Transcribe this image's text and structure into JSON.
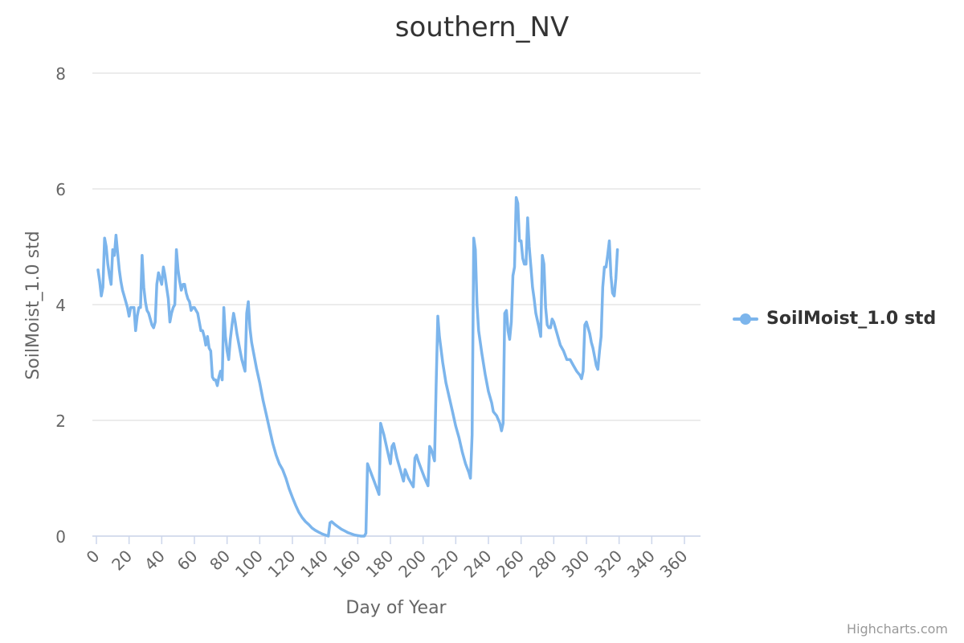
{
  "chart_data": {
    "type": "line",
    "title": "southern_NV",
    "xlabel": "Day of Year",
    "ylabel": "SoilMoist_1.0 std",
    "xlim": [
      0,
      366
    ],
    "ylim": [
      0,
      8
    ],
    "xticks": [
      0,
      20,
      40,
      60,
      80,
      100,
      120,
      140,
      160,
      180,
      200,
      220,
      240,
      260,
      280,
      300,
      320,
      340,
      360
    ],
    "yticks": [
      0,
      2,
      4,
      6,
      8
    ],
    "grid": true,
    "legend_position": "right",
    "series": [
      {
        "name": "SoilMoist_1.0 std",
        "color": "#7cb5ec",
        "points": [
          [
            1,
            4.6
          ],
          [
            2,
            4.4
          ],
          [
            3,
            4.15
          ],
          [
            4,
            4.3
          ],
          [
            5,
            5.15
          ],
          [
            6,
            5.0
          ],
          [
            7,
            4.7
          ],
          [
            8,
            4.5
          ],
          [
            9,
            4.35
          ],
          [
            10,
            4.95
          ],
          [
            11,
            4.85
          ],
          [
            12,
            5.2
          ],
          [
            13,
            4.9
          ],
          [
            14,
            4.6
          ],
          [
            15,
            4.4
          ],
          [
            16,
            4.25
          ],
          [
            17,
            4.15
          ],
          [
            18,
            4.05
          ],
          [
            19,
            3.95
          ],
          [
            20,
            3.8
          ],
          [
            21,
            3.95
          ],
          [
            22,
            3.95
          ],
          [
            23,
            3.95
          ],
          [
            24,
            3.55
          ],
          [
            25,
            3.8
          ],
          [
            26,
            3.95
          ],
          [
            27,
            3.95
          ],
          [
            28,
            4.85
          ],
          [
            29,
            4.3
          ],
          [
            30,
            4.05
          ],
          [
            31,
            3.9
          ],
          [
            32,
            3.85
          ],
          [
            33,
            3.75
          ],
          [
            34,
            3.65
          ],
          [
            35,
            3.6
          ],
          [
            36,
            3.7
          ],
          [
            37,
            4.35
          ],
          [
            38,
            4.55
          ],
          [
            39,
            4.45
          ],
          [
            40,
            4.35
          ],
          [
            41,
            4.65
          ],
          [
            42,
            4.5
          ],
          [
            43,
            4.3
          ],
          [
            44,
            4.1
          ],
          [
            45,
            3.7
          ],
          [
            46,
            3.85
          ],
          [
            47,
            3.95
          ],
          [
            48,
            4.0
          ],
          [
            49,
            4.95
          ],
          [
            50,
            4.6
          ],
          [
            51,
            4.4
          ],
          [
            52,
            4.25
          ],
          [
            53,
            4.35
          ],
          [
            54,
            4.35
          ],
          [
            55,
            4.2
          ],
          [
            56,
            4.1
          ],
          [
            57,
            4.05
          ],
          [
            58,
            3.9
          ],
          [
            59,
            3.95
          ],
          [
            60,
            3.95
          ],
          [
            61,
            3.9
          ],
          [
            62,
            3.85
          ],
          [
            63,
            3.7
          ],
          [
            64,
            3.55
          ],
          [
            65,
            3.55
          ],
          [
            66,
            3.45
          ],
          [
            67,
            3.3
          ],
          [
            68,
            3.45
          ],
          [
            69,
            3.25
          ],
          [
            70,
            3.2
          ],
          [
            71,
            2.75
          ],
          [
            72,
            2.7
          ],
          [
            73,
            2.7
          ],
          [
            74,
            2.6
          ],
          [
            75,
            2.75
          ],
          [
            76,
            2.85
          ],
          [
            77,
            2.7
          ],
          [
            78,
            3.95
          ],
          [
            79,
            3.45
          ],
          [
            80,
            3.2
          ],
          [
            81,
            3.05
          ],
          [
            82,
            3.4
          ],
          [
            83,
            3.65
          ],
          [
            84,
            3.85
          ],
          [
            85,
            3.7
          ],
          [
            86,
            3.5
          ],
          [
            87,
            3.35
          ],
          [
            88,
            3.2
          ],
          [
            89,
            3.05
          ],
          [
            90,
            2.95
          ],
          [
            91,
            2.85
          ],
          [
            92,
            3.85
          ],
          [
            93,
            4.05
          ],
          [
            94,
            3.6
          ],
          [
            95,
            3.35
          ],
          [
            96,
            3.2
          ],
          [
            98,
            2.9
          ],
          [
            100,
            2.65
          ],
          [
            102,
            2.35
          ],
          [
            104,
            2.1
          ],
          [
            106,
            1.85
          ],
          [
            108,
            1.6
          ],
          [
            110,
            1.4
          ],
          [
            112,
            1.25
          ],
          [
            114,
            1.15
          ],
          [
            116,
            1.0
          ],
          [
            118,
            0.82
          ],
          [
            120,
            0.67
          ],
          [
            122,
            0.53
          ],
          [
            124,
            0.41
          ],
          [
            126,
            0.32
          ],
          [
            128,
            0.25
          ],
          [
            130,
            0.2
          ],
          [
            132,
            0.14
          ],
          [
            134,
            0.1
          ],
          [
            136,
            0.07
          ],
          [
            138,
            0.04
          ],
          [
            140,
            0.02
          ],
          [
            142,
            0.0
          ],
          [
            143,
            0.23
          ],
          [
            144,
            0.25
          ],
          [
            146,
            0.2
          ],
          [
            148,
            0.16
          ],
          [
            150,
            0.12
          ],
          [
            152,
            0.09
          ],
          [
            154,
            0.06
          ],
          [
            156,
            0.04
          ],
          [
            158,
            0.02
          ],
          [
            160,
            0.01
          ],
          [
            162,
            0.0
          ],
          [
            164,
            0.0
          ],
          [
            165,
            0.05
          ],
          [
            166,
            1.25
          ],
          [
            168,
            1.1
          ],
          [
            170,
            0.95
          ],
          [
            172,
            0.8
          ],
          [
            173,
            0.72
          ],
          [
            174,
            1.95
          ],
          [
            176,
            1.75
          ],
          [
            178,
            1.5
          ],
          [
            180,
            1.25
          ],
          [
            181,
            1.55
          ],
          [
            182,
            1.6
          ],
          [
            184,
            1.35
          ],
          [
            186,
            1.15
          ],
          [
            187,
            1.05
          ],
          [
            188,
            0.95
          ],
          [
            189,
            1.15
          ],
          [
            191,
            1.0
          ],
          [
            193,
            0.9
          ],
          [
            194,
            0.85
          ],
          [
            195,
            1.35
          ],
          [
            196,
            1.4
          ],
          [
            197,
            1.3
          ],
          [
            199,
            1.15
          ],
          [
            201,
            1.0
          ],
          [
            203,
            0.87
          ],
          [
            204,
            1.55
          ],
          [
            205,
            1.5
          ],
          [
            206,
            1.4
          ],
          [
            207,
            1.3
          ],
          [
            208,
            2.6
          ],
          [
            209,
            3.8
          ],
          [
            210,
            3.45
          ],
          [
            212,
            3.0
          ],
          [
            214,
            2.65
          ],
          [
            216,
            2.4
          ],
          [
            218,
            2.15
          ],
          [
            220,
            1.9
          ],
          [
            222,
            1.7
          ],
          [
            224,
            1.45
          ],
          [
            226,
            1.25
          ],
          [
            228,
            1.1
          ],
          [
            229,
            1.0
          ],
          [
            230,
            1.75
          ],
          [
            231,
            5.15
          ],
          [
            232,
            4.95
          ],
          [
            233,
            4.0
          ],
          [
            234,
            3.55
          ],
          [
            236,
            3.15
          ],
          [
            238,
            2.8
          ],
          [
            240,
            2.5
          ],
          [
            242,
            2.3
          ],
          [
            243,
            2.15
          ],
          [
            245,
            2.08
          ],
          [
            247,
            1.95
          ],
          [
            248,
            1.82
          ],
          [
            249,
            1.95
          ],
          [
            250,
            3.85
          ],
          [
            251,
            3.9
          ],
          [
            252,
            3.55
          ],
          [
            253,
            3.4
          ],
          [
            254,
            3.7
          ],
          [
            255,
            4.5
          ],
          [
            256,
            4.65
          ],
          [
            257,
            5.85
          ],
          [
            258,
            5.75
          ],
          [
            259,
            5.1
          ],
          [
            260,
            5.1
          ],
          [
            261,
            4.8
          ],
          [
            262,
            4.7
          ],
          [
            263,
            4.7
          ],
          [
            264,
            5.5
          ],
          [
            265,
            5.0
          ],
          [
            266,
            4.65
          ],
          [
            267,
            4.3
          ],
          [
            268,
            4.1
          ],
          [
            269,
            3.85
          ],
          [
            271,
            3.6
          ],
          [
            272,
            3.45
          ],
          [
            273,
            4.85
          ],
          [
            274,
            4.7
          ],
          [
            275,
            3.95
          ],
          [
            276,
            3.65
          ],
          [
            277,
            3.6
          ],
          [
            278,
            3.6
          ],
          [
            279,
            3.75
          ],
          [
            280,
            3.7
          ],
          [
            282,
            3.5
          ],
          [
            284,
            3.3
          ],
          [
            286,
            3.2
          ],
          [
            288,
            3.05
          ],
          [
            290,
            3.05
          ],
          [
            292,
            2.95
          ],
          [
            294,
            2.85
          ],
          [
            296,
            2.78
          ],
          [
            297,
            2.72
          ],
          [
            298,
            2.85
          ],
          [
            299,
            3.65
          ],
          [
            300,
            3.7
          ],
          [
            301,
            3.6
          ],
          [
            302,
            3.5
          ],
          [
            303,
            3.35
          ],
          [
            304,
            3.25
          ],
          [
            305,
            3.1
          ],
          [
            306,
            2.95
          ],
          [
            307,
            2.88
          ],
          [
            308,
            3.2
          ],
          [
            309,
            3.45
          ],
          [
            310,
            4.3
          ],
          [
            311,
            4.65
          ],
          [
            312,
            4.65
          ],
          [
            313,
            4.85
          ],
          [
            314,
            5.1
          ],
          [
            315,
            4.5
          ],
          [
            316,
            4.2
          ],
          [
            317,
            4.15
          ],
          [
            318,
            4.45
          ],
          [
            319,
            4.95
          ]
        ]
      }
    ]
  },
  "credit": "Highcharts.com"
}
